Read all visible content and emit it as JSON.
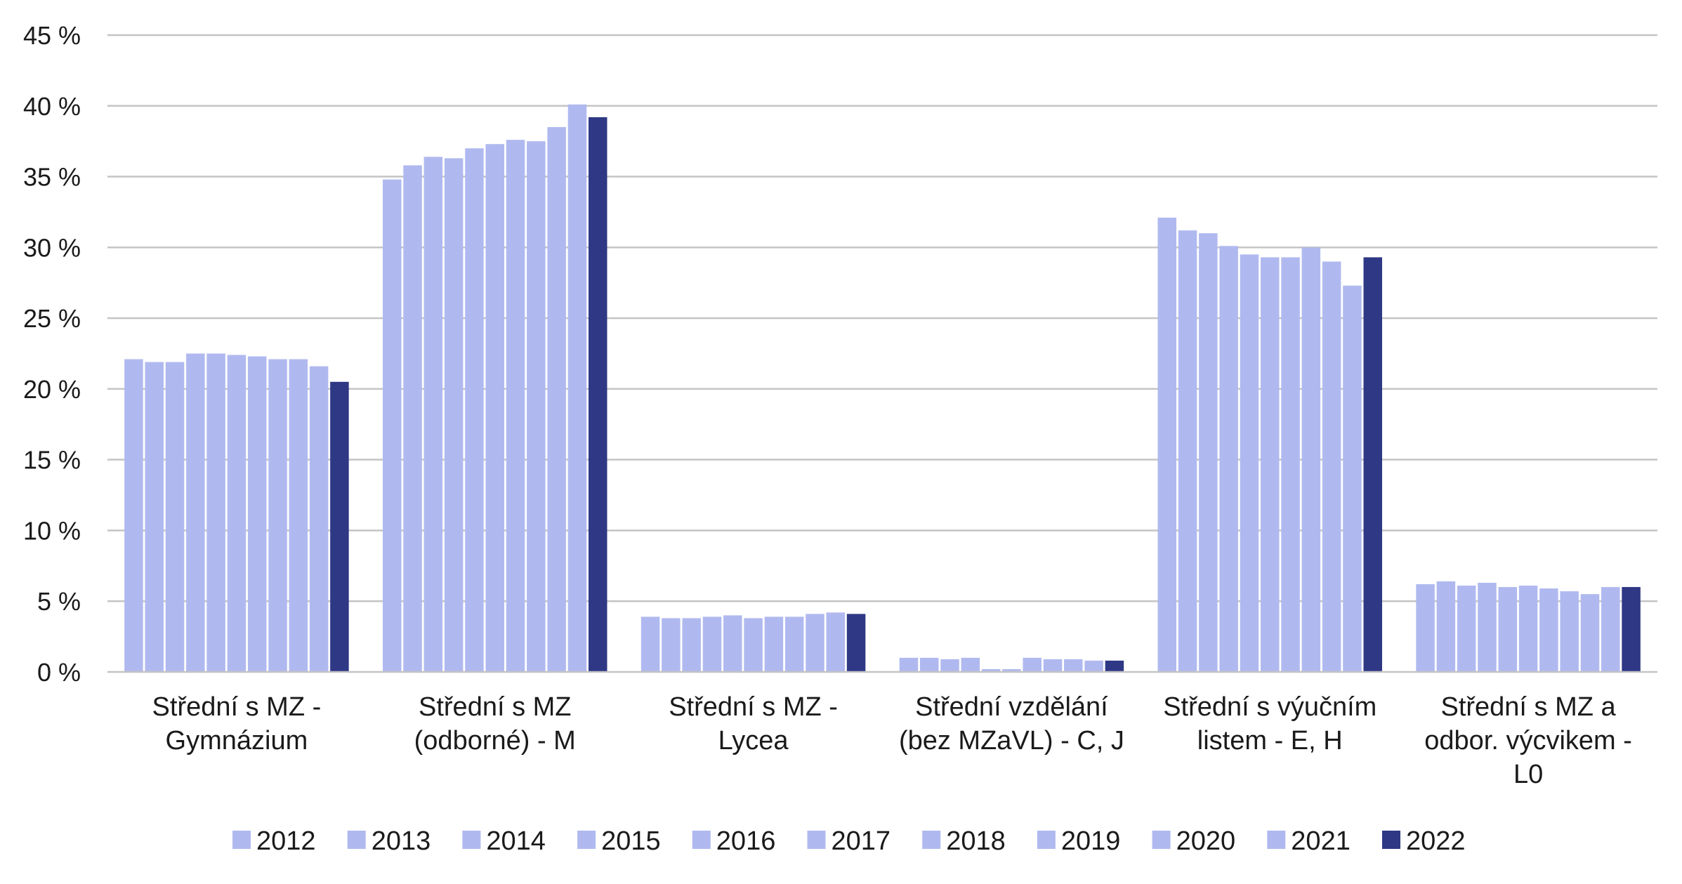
{
  "chart_data": {
    "type": "bar",
    "title": "",
    "xlabel": "",
    "ylabel": "",
    "ylim": [
      0,
      45
    ],
    "y_ticks": [
      0,
      5,
      10,
      15,
      20,
      25,
      30,
      35,
      40,
      45
    ],
    "y_tick_labels": [
      "0 %",
      "5 %",
      "10 %",
      "15 %",
      "20 %",
      "25 %",
      "30 %",
      "35 %",
      "40 %",
      "45 %"
    ],
    "grid": true,
    "legend_position": "bottom",
    "categories": [
      [
        "Střední s MZ -",
        "Gymnázium"
      ],
      [
        "Střední s MZ",
        "(odborné) - M"
      ],
      [
        "Střední s MZ -",
        "Lycea"
      ],
      [
        "Střední vzdělání",
        "(bez MZaVL) - C, J"
      ],
      [
        "Střední s výučním",
        "listem - E, H"
      ],
      [
        "Střední s MZ a",
        "odbor. výcvikem -",
        "L0"
      ]
    ],
    "series": [
      {
        "name": "2012",
        "color": "#b0b9ef",
        "values": [
          22.1,
          34.8,
          3.9,
          1.0,
          32.1,
          6.2
        ]
      },
      {
        "name": "2013",
        "color": "#b0b9ef",
        "values": [
          21.9,
          35.8,
          3.8,
          1.0,
          31.2,
          6.4
        ]
      },
      {
        "name": "2014",
        "color": "#b0b9ef",
        "values": [
          21.9,
          36.4,
          3.8,
          0.9,
          31.0,
          6.1
        ]
      },
      {
        "name": "2015",
        "color": "#b0b9ef",
        "values": [
          22.5,
          36.3,
          3.9,
          1.0,
          30.1,
          6.3
        ]
      },
      {
        "name": "2016",
        "color": "#b0b9ef",
        "values": [
          22.5,
          37.0,
          4.0,
          0.2,
          29.5,
          6.0
        ]
      },
      {
        "name": "2017",
        "color": "#b0b9ef",
        "values": [
          22.4,
          37.3,
          3.8,
          0.2,
          29.3,
          6.1
        ]
      },
      {
        "name": "2018",
        "color": "#b0b9ef",
        "values": [
          22.3,
          37.6,
          3.9,
          1.0,
          29.3,
          5.9
        ]
      },
      {
        "name": "2019",
        "color": "#b0b9ef",
        "values": [
          22.1,
          37.5,
          3.9,
          0.9,
          30.0,
          5.7
        ]
      },
      {
        "name": "2020",
        "color": "#b0b9ef",
        "values": [
          22.1,
          38.5,
          4.1,
          0.9,
          29.0,
          5.5
        ]
      },
      {
        "name": "2021",
        "color": "#b0b9ef",
        "values": [
          21.6,
          40.1,
          4.2,
          0.8,
          27.3,
          6.0
        ]
      },
      {
        "name": "2022",
        "color": "#2e3885",
        "values": [
          20.5,
          39.2,
          4.1,
          0.8,
          29.3,
          6.0
        ]
      }
    ]
  }
}
